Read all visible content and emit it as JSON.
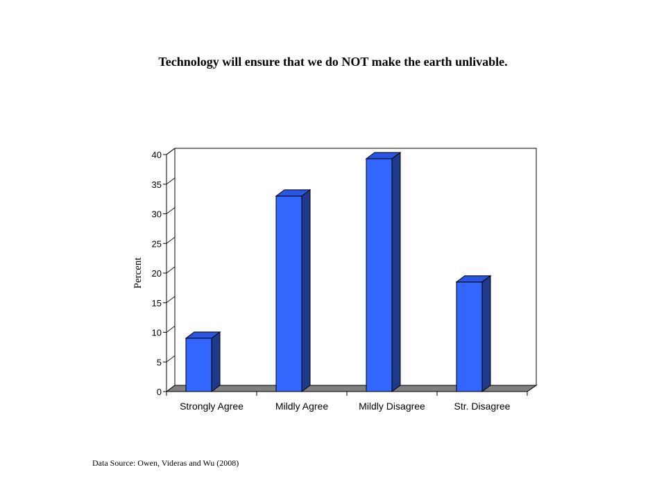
{
  "chart_data": {
    "type": "bar",
    "title": "Technology will ensure that we do NOT make the earth unlivable.",
    "categories": [
      "Strongly Agree",
      "Mildly Agree",
      "Mildly Disagree",
      "Str. Disagree"
    ],
    "values": [
      9,
      33,
      39.3,
      18.5
    ],
    "ylabel": "Percent",
    "xlabel": "",
    "ylim": [
      0,
      40
    ],
    "yticks": [
      0,
      5,
      10,
      15,
      20,
      25,
      30,
      35,
      40
    ],
    "grid": false,
    "legend": "none",
    "style": "3d-column",
    "colors": {
      "bar_front": "#3366ff",
      "bar_side": "#1f3a8a",
      "bar_top": "#2a55e0",
      "floor": "#808080"
    }
  },
  "footer": {
    "source": "Data Source: Owen, Videras and Wu (2008)"
  }
}
